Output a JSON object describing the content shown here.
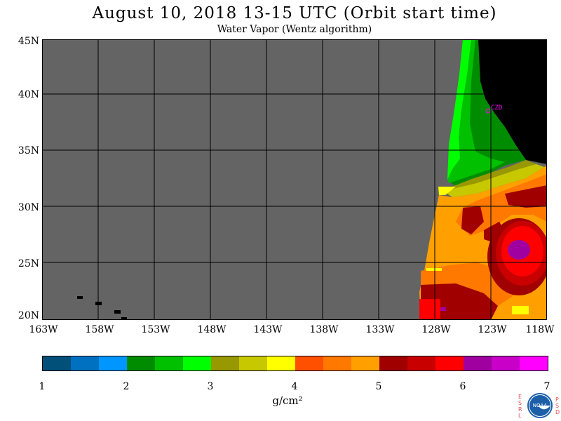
{
  "title": "August 10, 2018  13-15 UTC  (Orbit start time)",
  "subtitle": "Water Vapor (Wentz algorithm)",
  "lat_labels": [
    "45N",
    "40N",
    "35N",
    "30N",
    "25N",
    "20N"
  ],
  "lon_labels": [
    "163W",
    "158W",
    "153W",
    "148W",
    "143W",
    "138W",
    "133W",
    "128W",
    "123W",
    "118W"
  ],
  "station_label": "CZD",
  "colorbar": {
    "tick_labels": [
      "1",
      "2",
      "3",
      "4",
      "5",
      "6",
      "7"
    ],
    "units": "g/cm²",
    "colors": [
      "#00507a",
      "#0070c0",
      "#0096ff",
      "#008c00",
      "#00c000",
      "#00ff00",
      "#989800",
      "#c8c800",
      "#ffff00",
      "#ff5000",
      "#ff7800",
      "#ffa000",
      "#a00000",
      "#c80000",
      "#ff0000",
      "#a000a0",
      "#c800c8",
      "#ff00ff"
    ]
  },
  "colors": {
    "nodata": "#646464",
    "land": "#000000",
    "grid": "#000000"
  },
  "logo": {
    "left_letters": "ESRL",
    "right_letters": "PSD",
    "emblem_text": "NOAA"
  }
}
